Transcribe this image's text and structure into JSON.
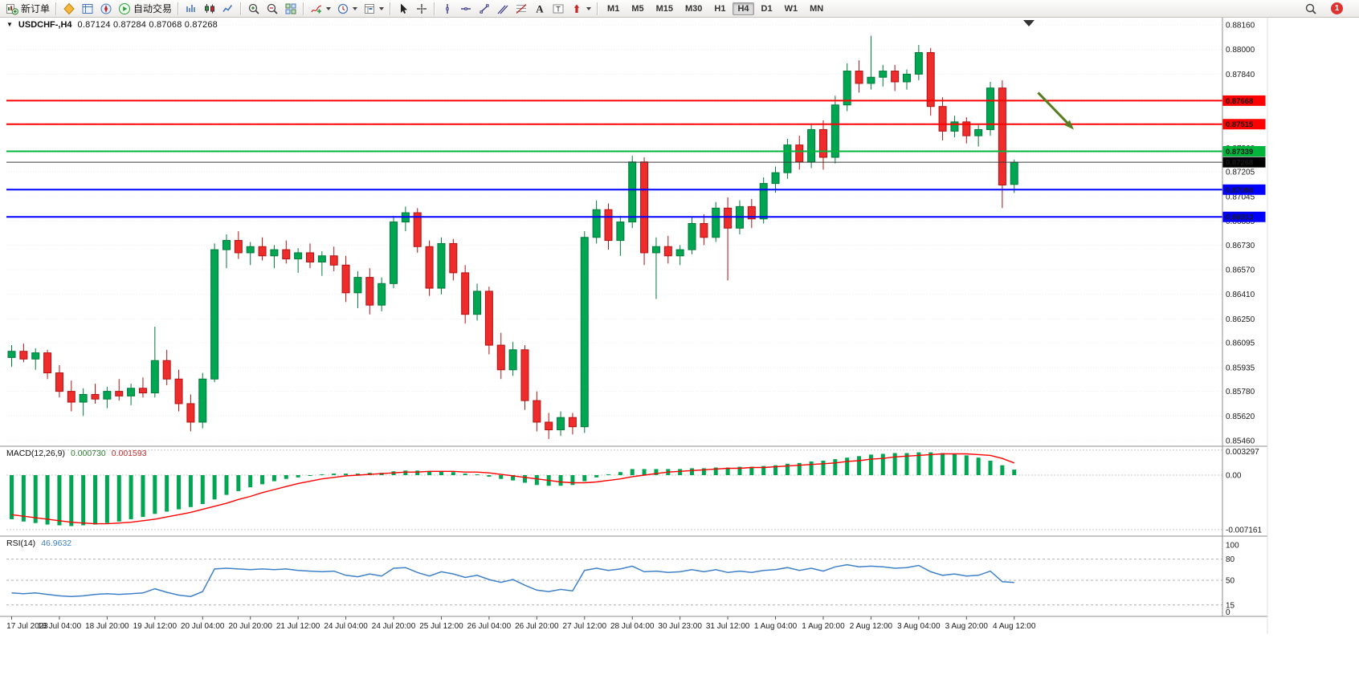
{
  "window": {
    "bg": "#ffffff",
    "toolbar_border": "#c6c3bf"
  },
  "toolbar": {
    "groups": [
      {
        "name": "orders",
        "items": [
          {
            "name": "new-order-button",
            "icon": "new-order",
            "label": "新订单"
          }
        ]
      },
      {
        "name": "panels",
        "items": [
          {
            "name": "market-watch-button",
            "icon": "market-watch"
          },
          {
            "name": "data-window-button",
            "icon": "data-window"
          },
          {
            "name": "navigator-button",
            "icon": "navigator"
          },
          {
            "name": "auto-trading-button",
            "icon": "auto-trading",
            "label": "自动交易"
          }
        ]
      },
      {
        "name": "chart-types",
        "items": [
          {
            "name": "bar-chart-button",
            "icon": "bar-chart"
          },
          {
            "name": "candle-chart-button",
            "icon": "candle-chart"
          },
          {
            "name": "line-chart-button",
            "icon": "line-chart"
          }
        ]
      },
      {
        "name": "zoom",
        "items": [
          {
            "name": "zoom-in-button",
            "icon": "zoom-in"
          },
          {
            "name": "zoom-out-button",
            "icon": "zoom-out"
          },
          {
            "name": "tile-windows-button",
            "icon": "tile-windows"
          }
        ]
      },
      {
        "name": "chart-menus",
        "items": [
          {
            "name": "indicators-button",
            "icon": "indicators",
            "caret": true
          },
          {
            "name": "periods-button",
            "icon": "clock",
            "caret": true
          },
          {
            "name": "templates-button",
            "icon": "template",
            "caret": true
          }
        ]
      },
      {
        "name": "cursor-tools",
        "items": [
          {
            "name": "cursor-button",
            "icon": "cursor"
          },
          {
            "name": "crosshair-button",
            "icon": "crosshair"
          }
        ]
      },
      {
        "name": "draw-tools",
        "items": [
          {
            "name": "vertical-line-button",
            "icon": "vline"
          },
          {
            "name": "horizontal-line-button",
            "icon": "hline"
          },
          {
            "name": "trendline-button",
            "icon": "trendline"
          },
          {
            "name": "channel-button",
            "icon": "channel"
          },
          {
            "name": "fibonacci-button",
            "icon": "fibo"
          },
          {
            "name": "text-button",
            "icon": "text"
          },
          {
            "name": "text-label-button",
            "icon": "label"
          },
          {
            "name": "arrows-button",
            "icon": "shapes",
            "caret": true
          }
        ]
      },
      {
        "name": "timeframes",
        "timeframes": [
          "M1",
          "M5",
          "M15",
          "M30",
          "H1",
          "H4",
          "D1",
          "W1",
          "MN"
        ],
        "active": "H4"
      }
    ],
    "right": [
      {
        "name": "search-button",
        "icon": "search"
      },
      {
        "name": "notification-badge",
        "badge": "1"
      }
    ]
  },
  "chart": {
    "symbol_label": "USDCHF-,H4",
    "ohlc_text": "0.87124 0.87284 0.87068 0.87268",
    "macd_label": {
      "name": "MACD(12,26,9)",
      "main_value": "0.000730",
      "signal_value": "0.001593"
    },
    "rsi_label": {
      "name": "RSI(14)",
      "value": "46.9632"
    }
  },
  "chart_data": {
    "type": "candlestick",
    "symbol": "USDCHF",
    "timeframe": "H4",
    "current_ohlc": {
      "open": 0.87124,
      "high": 0.87284,
      "low": 0.87068,
      "close": 0.87268
    },
    "colors": {
      "up": "#00a651",
      "up_stroke": "#007a3c",
      "down": "#ee2c2c",
      "down_stroke": "#b31212",
      "macd_hist": "#00a651",
      "macd_signal": "#ff0000",
      "rsi_line": "#3e81c8",
      "grid": "#ececec",
      "separator": "#8c8c8c",
      "arrow": "#567d1f"
    },
    "y_axis": {
      "max": 0.8816,
      "min": 0.8546,
      "labels": [
        "0.88160",
        "0.88000",
        "0.87840",
        "0.87680",
        "0.87520",
        "0.87360",
        "0.87205",
        "0.87045",
        "0.86885",
        "0.86730",
        "0.86570",
        "0.86410",
        "0.86250",
        "0.86095",
        "0.85935",
        "0.85780",
        "0.85620",
        "0.85460"
      ]
    },
    "x_labels": [
      "17 Jul 2023",
      "18 Jul 04:00",
      "18 Jul 20:00",
      "19 Jul 12:00",
      "20 Jul 04:00",
      "20 Jul 20:00",
      "21 Jul 12:00",
      "24 Jul 04:00",
      "24 Jul 20:00",
      "25 Jul 12:00",
      "26 Jul 04:00",
      "26 Jul 20:00",
      "27 Jul 12:00",
      "28 Jul 04:00",
      "30 Jul 23:00",
      "31 Jul 12:00",
      "1 Aug 04:00",
      "1 Aug 20:00",
      "2 Aug 12:00",
      "3 Aug 04:00",
      "3 Aug 20:00",
      "4 Aug 12:00"
    ],
    "candles_per_label": 4,
    "candles_ohlc": [
      [
        0.86,
        0.8608,
        0.8594,
        0.8604
      ],
      [
        0.8604,
        0.8609,
        0.8597,
        0.8599
      ],
      [
        0.8599,
        0.8606,
        0.8592,
        0.8603
      ],
      [
        0.8603,
        0.8605,
        0.8586,
        0.859
      ],
      [
        0.859,
        0.8595,
        0.8574,
        0.8578
      ],
      [
        0.8578,
        0.8585,
        0.8565,
        0.8571
      ],
      [
        0.8571,
        0.858,
        0.8562,
        0.8576
      ],
      [
        0.8576,
        0.8583,
        0.857,
        0.8573
      ],
      [
        0.8573,
        0.8581,
        0.8567,
        0.8578
      ],
      [
        0.8578,
        0.8586,
        0.8572,
        0.8575
      ],
      [
        0.8575,
        0.8583,
        0.8569,
        0.858
      ],
      [
        0.858,
        0.8587,
        0.8574,
        0.8577
      ],
      [
        0.8577,
        0.862,
        0.8574,
        0.8598
      ],
      [
        0.8598,
        0.8605,
        0.8582,
        0.8586
      ],
      [
        0.8586,
        0.8592,
        0.8565,
        0.857
      ],
      [
        0.857,
        0.8576,
        0.8552,
        0.8558
      ],
      [
        0.8558,
        0.859,
        0.8554,
        0.8586
      ],
      [
        0.8586,
        0.8674,
        0.8584,
        0.867
      ],
      [
        0.867,
        0.868,
        0.8658,
        0.8676
      ],
      [
        0.8676,
        0.8682,
        0.8664,
        0.8668
      ],
      [
        0.8668,
        0.8675,
        0.866,
        0.8672
      ],
      [
        0.8672,
        0.8678,
        0.8663,
        0.8666
      ],
      [
        0.8666,
        0.8673,
        0.8658,
        0.867
      ],
      [
        0.867,
        0.8676,
        0.8661,
        0.8664
      ],
      [
        0.8664,
        0.8671,
        0.8655,
        0.8668
      ],
      [
        0.8668,
        0.8674,
        0.8658,
        0.8662
      ],
      [
        0.8662,
        0.8669,
        0.8653,
        0.8666
      ],
      [
        0.8666,
        0.8672,
        0.8656,
        0.866
      ],
      [
        0.866,
        0.8666,
        0.8636,
        0.8642
      ],
      [
        0.8642,
        0.8656,
        0.8632,
        0.8652
      ],
      [
        0.8652,
        0.8658,
        0.8628,
        0.8634
      ],
      [
        0.8634,
        0.8652,
        0.863,
        0.8648
      ],
      [
        0.8648,
        0.8692,
        0.8645,
        0.8688
      ],
      [
        0.8688,
        0.8698,
        0.8682,
        0.8694
      ],
      [
        0.8694,
        0.8697,
        0.8668,
        0.8672
      ],
      [
        0.8672,
        0.8676,
        0.864,
        0.8645
      ],
      [
        0.8645,
        0.8678,
        0.8641,
        0.8674
      ],
      [
        0.8674,
        0.8677,
        0.865,
        0.8655
      ],
      [
        0.8655,
        0.866,
        0.8622,
        0.8628
      ],
      [
        0.8628,
        0.8648,
        0.8624,
        0.8643
      ],
      [
        0.8643,
        0.8646,
        0.8602,
        0.8608
      ],
      [
        0.8608,
        0.8616,
        0.8586,
        0.8592
      ],
      [
        0.8592,
        0.861,
        0.8588,
        0.8605
      ],
      [
        0.8605,
        0.8608,
        0.8566,
        0.8572
      ],
      [
        0.8572,
        0.8578,
        0.8552,
        0.8558
      ],
      [
        0.8558,
        0.8564,
        0.8547,
        0.8553
      ],
      [
        0.8553,
        0.8565,
        0.8549,
        0.8561
      ],
      [
        0.8561,
        0.8564,
        0.855,
        0.8555
      ],
      [
        0.8555,
        0.8682,
        0.8551,
        0.8678
      ],
      [
        0.8678,
        0.8702,
        0.8674,
        0.8696
      ],
      [
        0.8696,
        0.87,
        0.867,
        0.8676
      ],
      [
        0.8676,
        0.8692,
        0.8666,
        0.8688
      ],
      [
        0.8688,
        0.8731,
        0.8684,
        0.8727
      ],
      [
        0.8727,
        0.873,
        0.866,
        0.8668
      ],
      [
        0.8668,
        0.8678,
        0.8638,
        0.8672
      ],
      [
        0.8672,
        0.8679,
        0.8661,
        0.8666
      ],
      [
        0.8666,
        0.8673,
        0.866,
        0.867
      ],
      [
        0.867,
        0.8691,
        0.8667,
        0.8687
      ],
      [
        0.8687,
        0.8693,
        0.8673,
        0.8678
      ],
      [
        0.8678,
        0.8701,
        0.8675,
        0.8697
      ],
      [
        0.8697,
        0.8704,
        0.865,
        0.8684
      ],
      [
        0.8684,
        0.8702,
        0.868,
        0.8698
      ],
      [
        0.8698,
        0.8703,
        0.8684,
        0.869
      ],
      [
        0.869,
        0.8717,
        0.8687,
        0.8713
      ],
      [
        0.8713,
        0.8724,
        0.8707,
        0.872
      ],
      [
        0.872,
        0.8742,
        0.8716,
        0.8738
      ],
      [
        0.8738,
        0.8744,
        0.8722,
        0.8727
      ],
      [
        0.8727,
        0.8752,
        0.8723,
        0.8748
      ],
      [
        0.8748,
        0.8754,
        0.8722,
        0.873
      ],
      [
        0.873,
        0.877,
        0.8726,
        0.8764
      ],
      [
        0.8764,
        0.8791,
        0.876,
        0.8786
      ],
      [
        0.8786,
        0.8793,
        0.8772,
        0.8778
      ],
      [
        0.8778,
        0.8809,
        0.8774,
        0.8782
      ],
      [
        0.8782,
        0.879,
        0.8776,
        0.8786
      ],
      [
        0.8786,
        0.879,
        0.8773,
        0.8779
      ],
      [
        0.8779,
        0.8787,
        0.8774,
        0.8784
      ],
      [
        0.8784,
        0.8803,
        0.878,
        0.8798
      ],
      [
        0.8798,
        0.8801,
        0.8757,
        0.8763
      ],
      [
        0.8763,
        0.8769,
        0.8741,
        0.8747
      ],
      [
        0.8747,
        0.8757,
        0.8743,
        0.8753
      ],
      [
        0.8753,
        0.8756,
        0.8739,
        0.8744
      ],
      [
        0.8744,
        0.8751,
        0.8737,
        0.8748
      ],
      [
        0.8748,
        0.8779,
        0.8744,
        0.8775
      ],
      [
        0.8775,
        0.878,
        0.8697,
        0.8712
      ],
      [
        0.87124,
        0.87284,
        0.87068,
        0.87268
      ]
    ],
    "hlines": [
      {
        "price": 0.87668,
        "label": "0.87668",
        "color": "#ff0000",
        "width": 2
      },
      {
        "price": 0.87515,
        "label": "0.87515",
        "color": "#ff0000",
        "width": 2
      },
      {
        "price": 0.87339,
        "label": "0.87339",
        "color": "#00b43c",
        "width": 2
      },
      {
        "price": 0.87268,
        "label": "0.87268",
        "color": "#3a3a3a",
        "width": 1,
        "badge_color": "#000000",
        "is_current_price": true
      },
      {
        "price": 0.8709,
        "label": "0.87090",
        "color": "#0000ff",
        "width": 2
      },
      {
        "price": 0.86913,
        "label": "0.86913",
        "color": "#0000ff",
        "width": 2
      }
    ],
    "indicators": {
      "macd": {
        "title": "MACD(12,26,9)",
        "axis_labels": [
          {
            "value": 0.003297,
            "label": "0.003297"
          },
          {
            "value": 0,
            "label": "0.00"
          },
          {
            "value": -0.007161,
            "label": "-0.007161"
          }
        ],
        "histogram": [
          -0.0058,
          -0.0061,
          -0.0063,
          -0.0065,
          -0.0066,
          -0.0067,
          -0.0066,
          -0.0065,
          -0.0063,
          -0.0061,
          -0.0058,
          -0.0055,
          -0.0051,
          -0.0048,
          -0.0045,
          -0.0042,
          -0.0038,
          -0.0032,
          -0.0026,
          -0.0021,
          -0.0016,
          -0.0012,
          -0.0008,
          -0.0005,
          -0.0003,
          -0.0001,
          0.0001,
          0.0002,
          0.0002,
          0.0002,
          0.0003,
          0.0003,
          0.0005,
          0.0006,
          0.0006,
          0.0005,
          0.0005,
          0.0004,
          0.0002,
          0.0001,
          -0.0002,
          -0.0005,
          -0.0007,
          -0.001,
          -0.0013,
          -0.0014,
          -0.0014,
          -0.0013,
          -0.0008,
          -0.0003,
          0.0001,
          0.0004,
          0.0008,
          0.0008,
          0.0008,
          0.0008,
          0.0008,
          0.0009,
          0.0009,
          0.001,
          0.001,
          0.0011,
          0.0011,
          0.0012,
          0.0013,
          0.0015,
          0.0016,
          0.0018,
          0.0019,
          0.0021,
          0.0023,
          0.0025,
          0.0027,
          0.0028,
          0.0029,
          0.0029,
          0.003,
          0.003,
          0.0029,
          0.0028,
          0.0026,
          0.0023,
          0.0019,
          0.0013,
          0.00073
        ],
        "signal": [
          -0.0052,
          -0.0054,
          -0.0056,
          -0.0058,
          -0.006,
          -0.0062,
          -0.0063,
          -0.0064,
          -0.0064,
          -0.0063,
          -0.0062,
          -0.006,
          -0.0058,
          -0.0055,
          -0.0052,
          -0.0049,
          -0.0045,
          -0.0041,
          -0.0037,
          -0.0032,
          -0.0028,
          -0.0023,
          -0.0019,
          -0.0015,
          -0.0011,
          -0.0008,
          -0.0005,
          -0.0003,
          -0.0001,
          0.0,
          0.0001,
          0.0002,
          0.0003,
          0.0004,
          0.0004,
          0.0005,
          0.0005,
          0.0005,
          0.0004,
          0.0004,
          0.0003,
          0.0001,
          -0.0001,
          -0.0003,
          -0.0005,
          -0.0007,
          -0.0009,
          -0.001,
          -0.001,
          -0.0009,
          -0.0007,
          -0.0005,
          -0.0002,
          0.0,
          0.0002,
          0.0004,
          0.0005,
          0.0006,
          0.0007,
          0.0008,
          0.0009,
          0.0009,
          0.001,
          0.001,
          0.0011,
          0.0012,
          0.0013,
          0.0014,
          0.0015,
          0.0016,
          0.0018,
          0.0019,
          0.0021,
          0.0022,
          0.0024,
          0.0025,
          0.0026,
          0.0027,
          0.0028,
          0.0028,
          0.0028,
          0.0027,
          0.0026,
          0.0022,
          0.0016
        ]
      },
      "rsi": {
        "title": "RSI(14)",
        "current": 46.9632,
        "levels": [
          80,
          50,
          15
        ],
        "axis_labels": [
          {
            "value": 100,
            "label": "100"
          },
          {
            "value": 80,
            "label": "80"
          },
          {
            "value": 50,
            "label": "50"
          },
          {
            "value": 15,
            "label": "15"
          },
          {
            "value": 0,
            "label": "0"
          }
        ],
        "values": [
          32,
          31,
          32,
          30,
          28,
          27,
          28,
          30,
          31,
          30,
          31,
          32,
          38,
          33,
          29,
          27,
          34,
          66,
          67,
          66,
          65,
          66,
          65,
          66,
          64,
          63,
          62,
          63,
          57,
          55,
          59,
          56,
          67,
          68,
          61,
          56,
          62,
          59,
          54,
          57,
          51,
          47,
          51,
          43,
          36,
          34,
          37,
          35,
          64,
          67,
          64,
          66,
          70,
          62,
          63,
          61,
          62,
          65,
          62,
          65,
          61,
          63,
          61,
          64,
          65,
          68,
          64,
          67,
          63,
          69,
          72,
          69,
          70,
          69,
          67,
          68,
          71,
          62,
          57,
          59,
          56,
          57,
          63,
          48,
          46.9632
        ]
      }
    },
    "annotations": {
      "arrow": {
        "bar1": 86,
        "price1": 0.8772,
        "bar2": 89,
        "price2": 0.8748,
        "color": "#567d1f"
      }
    }
  }
}
